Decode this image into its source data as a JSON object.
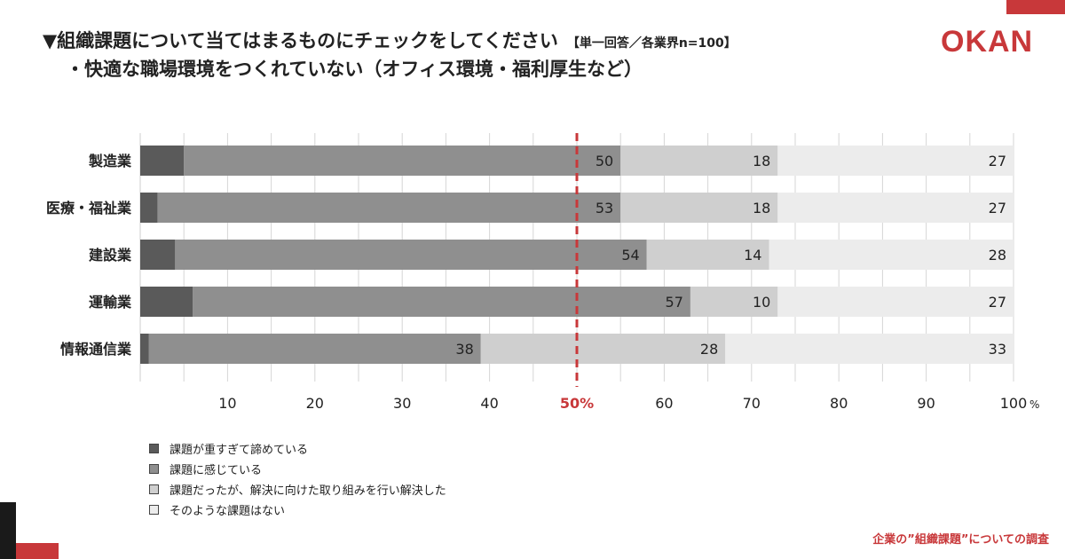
{
  "brand": {
    "logo_text": "OKAN",
    "accent_color": "#c8383a",
    "dark_color": "#1a1a1a"
  },
  "header": {
    "title": "▼組織課題について当てはまるものにチェックをしてください",
    "note": "【単一回答／各業界n=100】",
    "subtitle": "・快適な職場環境をつくれていない（オフィス環境・福利厚生など）"
  },
  "footer": {
    "text": "企業の”組織課題”についての調査"
  },
  "chart_data": {
    "type": "bar",
    "orientation": "horizontal",
    "stacked": true,
    "categories": [
      "製造業",
      "医療・福祉業",
      "建設業",
      "運輸業",
      "情報通信業"
    ],
    "series": [
      {
        "name": "課題が重すぎて諦めている",
        "values": [
          5,
          2,
          4,
          6,
          1
        ],
        "color": "#5a5a5a"
      },
      {
        "name": "課題に感じている",
        "values": [
          50,
          53,
          54,
          57,
          38
        ],
        "color": "#8f8f8f"
      },
      {
        "name": "課題だったが、解決に向けた取り組みを行い解決した",
        "values": [
          18,
          18,
          14,
          10,
          28
        ],
        "color": "#cfcfcf"
      },
      {
        "name": "そのような課題はない",
        "values": [
          27,
          27,
          28,
          27,
          33
        ],
        "color": "#ececec"
      }
    ],
    "xlim": [
      0,
      100
    ],
    "xticks": [
      "10",
      "20",
      "30",
      "40",
      "50%",
      "60",
      "70",
      "80",
      "90",
      "100"
    ],
    "x_unit": "%",
    "reference_line": {
      "value": 50,
      "color": "#c8383a",
      "style": "dashed"
    },
    "grid": true,
    "legend_position": "bottom-left"
  }
}
